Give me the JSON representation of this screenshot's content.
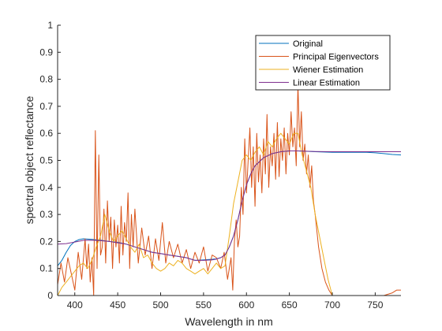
{
  "chart_data": {
    "type": "line",
    "title": "",
    "xlabel": "Wavelength in nm",
    "ylabel": "spectral object reflectance",
    "xlim": [
      380,
      780
    ],
    "ylim": [
      0,
      1
    ],
    "x_ticks": [
      400,
      450,
      500,
      550,
      600,
      650,
      700,
      750
    ],
    "y_ticks": [
      0,
      0.1,
      0.2,
      0.3,
      0.4,
      0.5,
      0.6,
      0.7,
      0.8,
      0.9,
      1
    ],
    "grid": false,
    "legend_position": "top-right",
    "series": [
      {
        "name": "Original",
        "color": "#0072BD",
        "x": [
          380,
          385,
          390,
          395,
          400,
          405,
          410,
          420,
          430,
          440,
          450,
          460,
          470,
          480,
          490,
          500,
          510,
          520,
          530,
          540,
          550,
          560,
          565,
          570,
          575,
          580,
          585,
          590,
          595,
          600,
          605,
          610,
          620,
          630,
          640,
          650,
          660,
          680,
          700,
          720,
          740,
          750,
          760,
          770,
          780
        ],
        "y": [
          0.11,
          0.13,
          0.16,
          0.185,
          0.2,
          0.207,
          0.21,
          0.208,
          0.205,
          0.2,
          0.197,
          0.19,
          0.18,
          0.17,
          0.16,
          0.155,
          0.15,
          0.145,
          0.14,
          0.13,
          0.132,
          0.134,
          0.136,
          0.14,
          0.15,
          0.18,
          0.22,
          0.28,
          0.35,
          0.41,
          0.45,
          0.48,
          0.51,
          0.525,
          0.532,
          0.535,
          0.535,
          0.532,
          0.53,
          0.53,
          0.53,
          0.528,
          0.525,
          0.522,
          0.52
        ]
      },
      {
        "name": "Principal Eigenvectors",
        "color": "#D95319",
        "x": [
          380,
          384,
          388,
          392,
          396,
          400,
          404,
          408,
          412,
          414,
          416,
          418,
          420,
          422,
          424,
          426,
          428,
          430,
          432,
          434,
          436,
          438,
          440,
          442,
          444,
          446,
          448,
          450,
          452,
          454,
          456,
          458,
          460,
          462,
          464,
          466,
          468,
          470,
          474,
          478,
          482,
          486,
          490,
          494,
          498,
          502,
          506,
          510,
          515,
          520,
          525,
          530,
          535,
          540,
          545,
          550,
          555,
          560,
          565,
          570,
          574,
          578,
          582,
          584,
          586,
          588,
          590,
          592,
          594,
          596,
          598,
          600,
          602,
          604,
          606,
          608,
          610,
          612,
          614,
          616,
          618,
          620,
          622,
          624,
          626,
          628,
          630,
          632,
          634,
          636,
          638,
          640,
          642,
          644,
          646,
          648,
          650,
          652,
          654,
          656,
          658,
          660,
          662,
          664,
          666,
          668,
          670,
          672,
          674,
          676,
          678,
          680,
          684,
          688,
          692,
          696,
          700,
          705,
          710,
          720,
          730,
          740,
          750,
          760,
          770,
          775,
          780
        ],
        "y": [
          0.04,
          0.12,
          0.05,
          0.14,
          0.08,
          0.02,
          0.16,
          0.06,
          0.21,
          0.1,
          0.19,
          0.05,
          0.14,
          0.0,
          0.61,
          0.1,
          0.52,
          0.15,
          0.18,
          0.32,
          0.12,
          0.35,
          0.2,
          0.29,
          0.1,
          0.28,
          0.18,
          0.26,
          0.12,
          0.33,
          0.15,
          0.27,
          0.2,
          0.38,
          0.1,
          0.3,
          0.18,
          0.32,
          0.12,
          0.25,
          0.15,
          0.22,
          0.1,
          0.21,
          0.13,
          0.27,
          0.12,
          0.2,
          0.14,
          0.19,
          0.12,
          0.17,
          0.1,
          0.16,
          0.12,
          0.18,
          0.09,
          0.15,
          0.14,
          0.1,
          0.16,
          0.06,
          0.14,
          0.02,
          0.2,
          0.28,
          0.18,
          0.22,
          0.4,
          0.3,
          0.58,
          0.38,
          0.5,
          0.62,
          0.4,
          0.55,
          0.33,
          0.6,
          0.42,
          0.52,
          0.38,
          0.58,
          0.45,
          0.67,
          0.4,
          0.55,
          0.48,
          0.6,
          0.43,
          0.64,
          0.44,
          0.58,
          0.5,
          0.62,
          0.45,
          0.6,
          0.52,
          0.68,
          0.55,
          0.62,
          0.48,
          0.78,
          0.55,
          0.68,
          0.5,
          0.56,
          0.45,
          0.52,
          0.4,
          0.48,
          0.35,
          0.3,
          0.18,
          0.1,
          0.05,
          0.02,
          0.0,
          0.0,
          0.0,
          0.0,
          0.0,
          0.0,
          0.0,
          0.0,
          0.01,
          0.02,
          0.02
        ]
      },
      {
        "name": "Wiener Estimation",
        "color": "#EDB120",
        "x": [
          380,
          385,
          390,
          395,
          400,
          405,
          410,
          415,
          420,
          425,
          430,
          435,
          440,
          445,
          450,
          455,
          460,
          465,
          470,
          475,
          480,
          485,
          490,
          495,
          500,
          505,
          510,
          515,
          520,
          525,
          530,
          535,
          540,
          545,
          550,
          555,
          560,
          565,
          570,
          575,
          580,
          585,
          590,
          595,
          600,
          605,
          610,
          615,
          620,
          625,
          630,
          635,
          640,
          645,
          650,
          655,
          660,
          665,
          670,
          675,
          680,
          685,
          690,
          695,
          700,
          705,
          710,
          720,
          740,
          760,
          780
        ],
        "y": [
          0.0,
          0.03,
          0.05,
          0.07,
          0.09,
          0.11,
          0.12,
          0.1,
          0.13,
          0.18,
          0.22,
          0.3,
          0.24,
          0.2,
          0.22,
          0.24,
          0.21,
          0.18,
          0.16,
          0.19,
          0.14,
          0.15,
          0.12,
          0.1,
          0.09,
          0.1,
          0.12,
          0.11,
          0.13,
          0.12,
          0.1,
          0.09,
          0.08,
          0.09,
          0.1,
          0.08,
          0.1,
          0.12,
          0.1,
          0.11,
          0.22,
          0.34,
          0.42,
          0.5,
          0.52,
          0.5,
          0.53,
          0.55,
          0.52,
          0.57,
          0.55,
          0.58,
          0.6,
          0.58,
          0.56,
          0.6,
          0.6,
          0.52,
          0.46,
          0.4,
          0.3,
          0.22,
          0.14,
          0.06,
          0.0,
          0.0,
          0.0,
          0.0,
          0.0,
          0.0,
          0.0
        ]
      },
      {
        "name": "Linear Estimation",
        "color": "#7E2F8E",
        "x": [
          380,
          390,
          400,
          410,
          420,
          430,
          440,
          450,
          460,
          470,
          480,
          490,
          500,
          510,
          520,
          530,
          540,
          550,
          560,
          565,
          570,
          575,
          580,
          585,
          590,
          595,
          600,
          605,
          610,
          620,
          630,
          640,
          650,
          660,
          680,
          700,
          720,
          740,
          760,
          780
        ],
        "y": [
          0.19,
          0.192,
          0.198,
          0.204,
          0.205,
          0.203,
          0.2,
          0.195,
          0.19,
          0.18,
          0.17,
          0.16,
          0.155,
          0.15,
          0.145,
          0.14,
          0.13,
          0.13,
          0.132,
          0.135,
          0.14,
          0.15,
          0.18,
          0.22,
          0.28,
          0.35,
          0.41,
          0.45,
          0.48,
          0.51,
          0.525,
          0.532,
          0.535,
          0.535,
          0.533,
          0.532,
          0.532,
          0.532,
          0.532,
          0.532
        ]
      }
    ]
  }
}
